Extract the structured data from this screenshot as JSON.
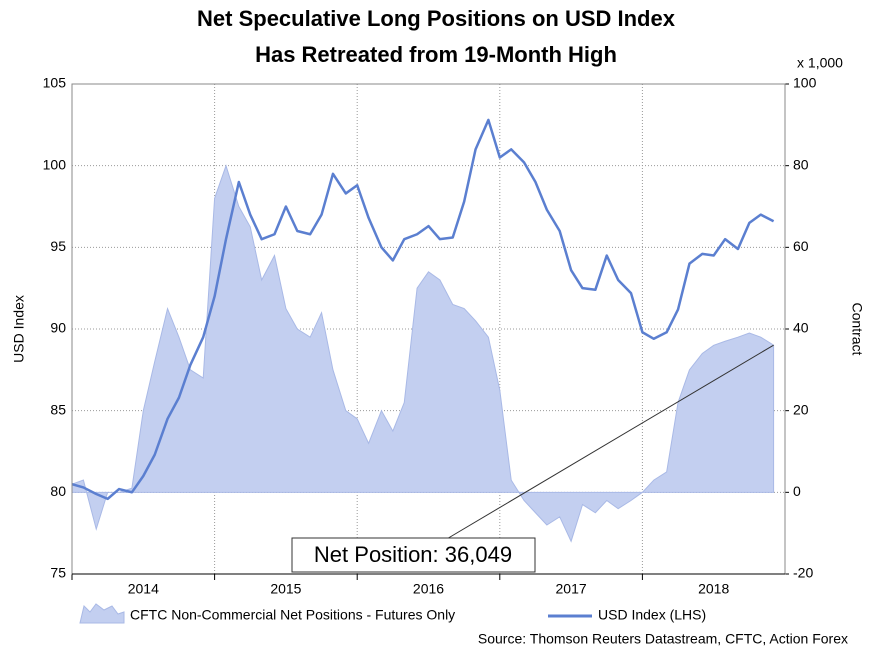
{
  "chart_data": {
    "type": "line",
    "title": [
      "Net Speculative Long Positions on USD Index",
      "Has Retreated from 19-Month High"
    ],
    "ylabel": "USD Index",
    "y2label": "Contract",
    "y2unit": "x 1,000",
    "source": "Source: Thomson Reuters Datastream, CFTC, Action Forex",
    "annotation": "Net Position: 36,049",
    "xlim": [
      2014,
      2019
    ],
    "xticks": [
      2014,
      2015,
      2016,
      2017,
      2018
    ],
    "ylim": [
      75,
      105
    ],
    "yticks": [
      75,
      80,
      85,
      90,
      95,
      100,
      105
    ],
    "y2lim": [
      -20,
      100
    ],
    "y2ticks": [
      -20,
      0,
      20,
      40,
      60,
      80,
      100
    ],
    "grid": true,
    "x": [
      2014.0,
      2014.08,
      2014.17,
      2014.25,
      2014.33,
      2014.42,
      2014.5,
      2014.58,
      2014.67,
      2014.75,
      2014.83,
      2014.92,
      2015.0,
      2015.08,
      2015.17,
      2015.25,
      2015.33,
      2015.42,
      2015.5,
      2015.58,
      2015.67,
      2015.75,
      2015.83,
      2015.92,
      2016.0,
      2016.08,
      2016.17,
      2016.25,
      2016.33,
      2016.42,
      2016.5,
      2016.58,
      2016.67,
      2016.75,
      2016.83,
      2016.92,
      2017.0,
      2017.08,
      2017.17,
      2017.25,
      2017.33,
      2017.42,
      2017.5,
      2017.58,
      2017.67,
      2017.75,
      2017.83,
      2017.92,
      2018.0,
      2018.08,
      2018.17,
      2018.25,
      2018.33,
      2018.42,
      2018.5,
      2018.58,
      2018.67,
      2018.75,
      2018.83,
      2018.92
    ],
    "series": [
      {
        "name": "CFTC Non-Commercial Net Positions - Futures Only",
        "type": "area",
        "axis": "y2",
        "color": "#c3cff0",
        "stroke": "#a9b9e6",
        "values": [
          2,
          3,
          -9,
          0,
          0,
          1,
          20,
          32,
          45,
          38,
          30,
          28,
          72,
          80,
          70,
          65,
          52,
          58,
          45,
          40,
          38,
          44,
          30,
          20,
          18,
          12,
          20,
          15,
          22,
          50,
          54,
          52,
          46,
          45,
          42,
          38,
          25,
          3,
          -2,
          -5,
          -8,
          -6,
          -12,
          -3,
          -5,
          -2,
          -4,
          -2,
          0,
          3,
          5,
          22,
          30,
          34,
          36,
          37,
          38,
          39,
          38,
          36.049
        ]
      },
      {
        "name": "USD Index (LHS)",
        "type": "line",
        "color": "#5b7fd0",
        "values": [
          80.5,
          80.3,
          79.9,
          79.6,
          80.2,
          80.0,
          81.0,
          82.3,
          84.5,
          85.8,
          87.8,
          89.5,
          92.0,
          95.5,
          99.0,
          97.0,
          95.5,
          95.8,
          97.5,
          96.0,
          95.8,
          97.0,
          99.5,
          98.3,
          98.8,
          96.8,
          95.0,
          94.2,
          95.5,
          95.8,
          96.3,
          95.5,
          95.6,
          97.8,
          101.0,
          102.8,
          100.5,
          101.0,
          100.2,
          99.0,
          97.3,
          96.0,
          93.6,
          92.5,
          92.4,
          94.5,
          93.0,
          92.2,
          89.8,
          89.4,
          89.8,
          91.2,
          94.0,
          94.6,
          94.5,
          95.5,
          94.9,
          96.5,
          97.0,
          96.6
        ]
      }
    ]
  }
}
